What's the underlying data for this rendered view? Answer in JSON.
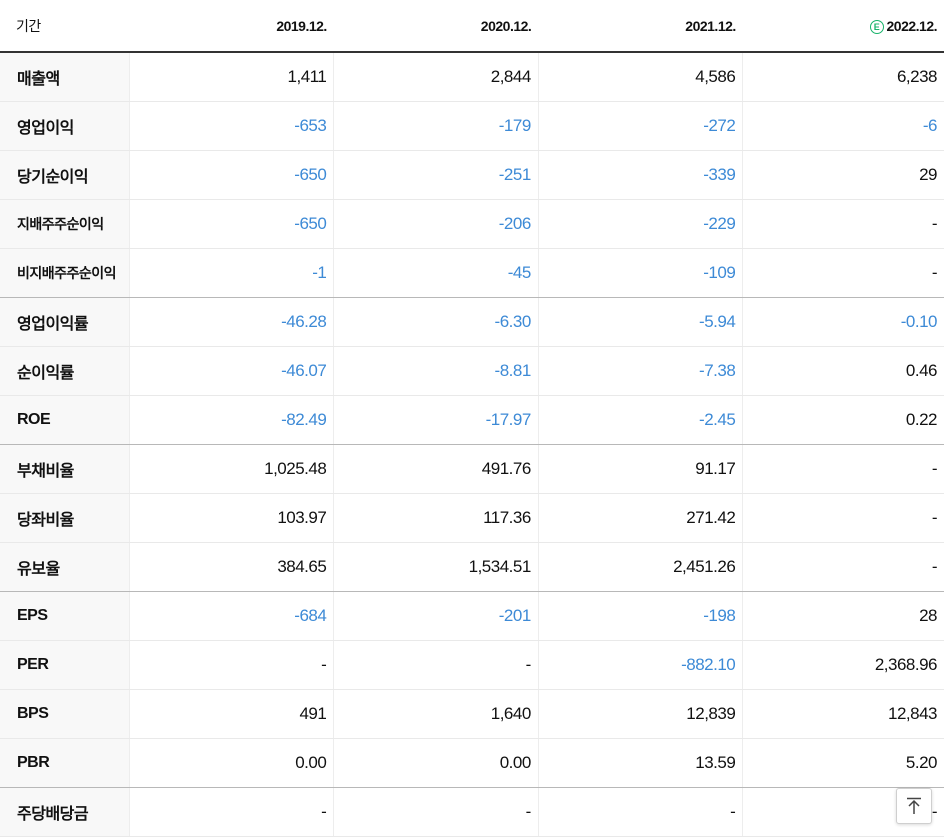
{
  "header": {
    "period_label": "기간",
    "columns": [
      "2019.12.",
      "2020.12.",
      "2021.12.",
      "2022.12."
    ],
    "estimate_badge": "E"
  },
  "rows": [
    {
      "label": "매출액",
      "values": [
        "1,411",
        "2,844",
        "4,586",
        "6,238"
      ]
    },
    {
      "label": "영업이익",
      "values": [
        "-653",
        "-179",
        "-272",
        "-6"
      ]
    },
    {
      "label": "당기순이익",
      "values": [
        "-650",
        "-251",
        "-339",
        "29"
      ]
    },
    {
      "label": "지배주주순이익",
      "values": [
        "-650",
        "-206",
        "-229",
        "-"
      ]
    },
    {
      "label": "비지배주주순이익",
      "values": [
        "-1",
        "-45",
        "-109",
        "-"
      ]
    },
    {
      "label": "영업이익률",
      "values": [
        "-46.28",
        "-6.30",
        "-5.94",
        "-0.10"
      ]
    },
    {
      "label": "순이익률",
      "values": [
        "-46.07",
        "-8.81",
        "-7.38",
        "0.46"
      ]
    },
    {
      "label": "ROE",
      "values": [
        "-82.49",
        "-17.97",
        "-2.45",
        "0.22"
      ]
    },
    {
      "label": "부채비율",
      "values": [
        "1,025.48",
        "491.76",
        "91.17",
        "-"
      ]
    },
    {
      "label": "당좌비율",
      "values": [
        "103.97",
        "117.36",
        "271.42",
        "-"
      ]
    },
    {
      "label": "유보율",
      "values": [
        "384.65",
        "1,534.51",
        "2,451.26",
        "-"
      ]
    },
    {
      "label": "EPS",
      "values": [
        "-684",
        "-201",
        "-198",
        "28"
      ]
    },
    {
      "label": "PER",
      "values": [
        "-",
        "-",
        "-882.10",
        "2,368.96"
      ]
    },
    {
      "label": "BPS",
      "values": [
        "491",
        "1,640",
        "12,839",
        "12,843"
      ]
    },
    {
      "label": "PBR",
      "values": [
        "0.00",
        "0.00",
        "13.59",
        "5.20"
      ]
    },
    {
      "label": "주당배당금",
      "values": [
        "-",
        "-",
        "-",
        "-"
      ]
    }
  ],
  "colors": {
    "negative": "#3d8ad6",
    "estimate": "#19b36b"
  },
  "scroll_top_icon": "arrow-up-icon"
}
